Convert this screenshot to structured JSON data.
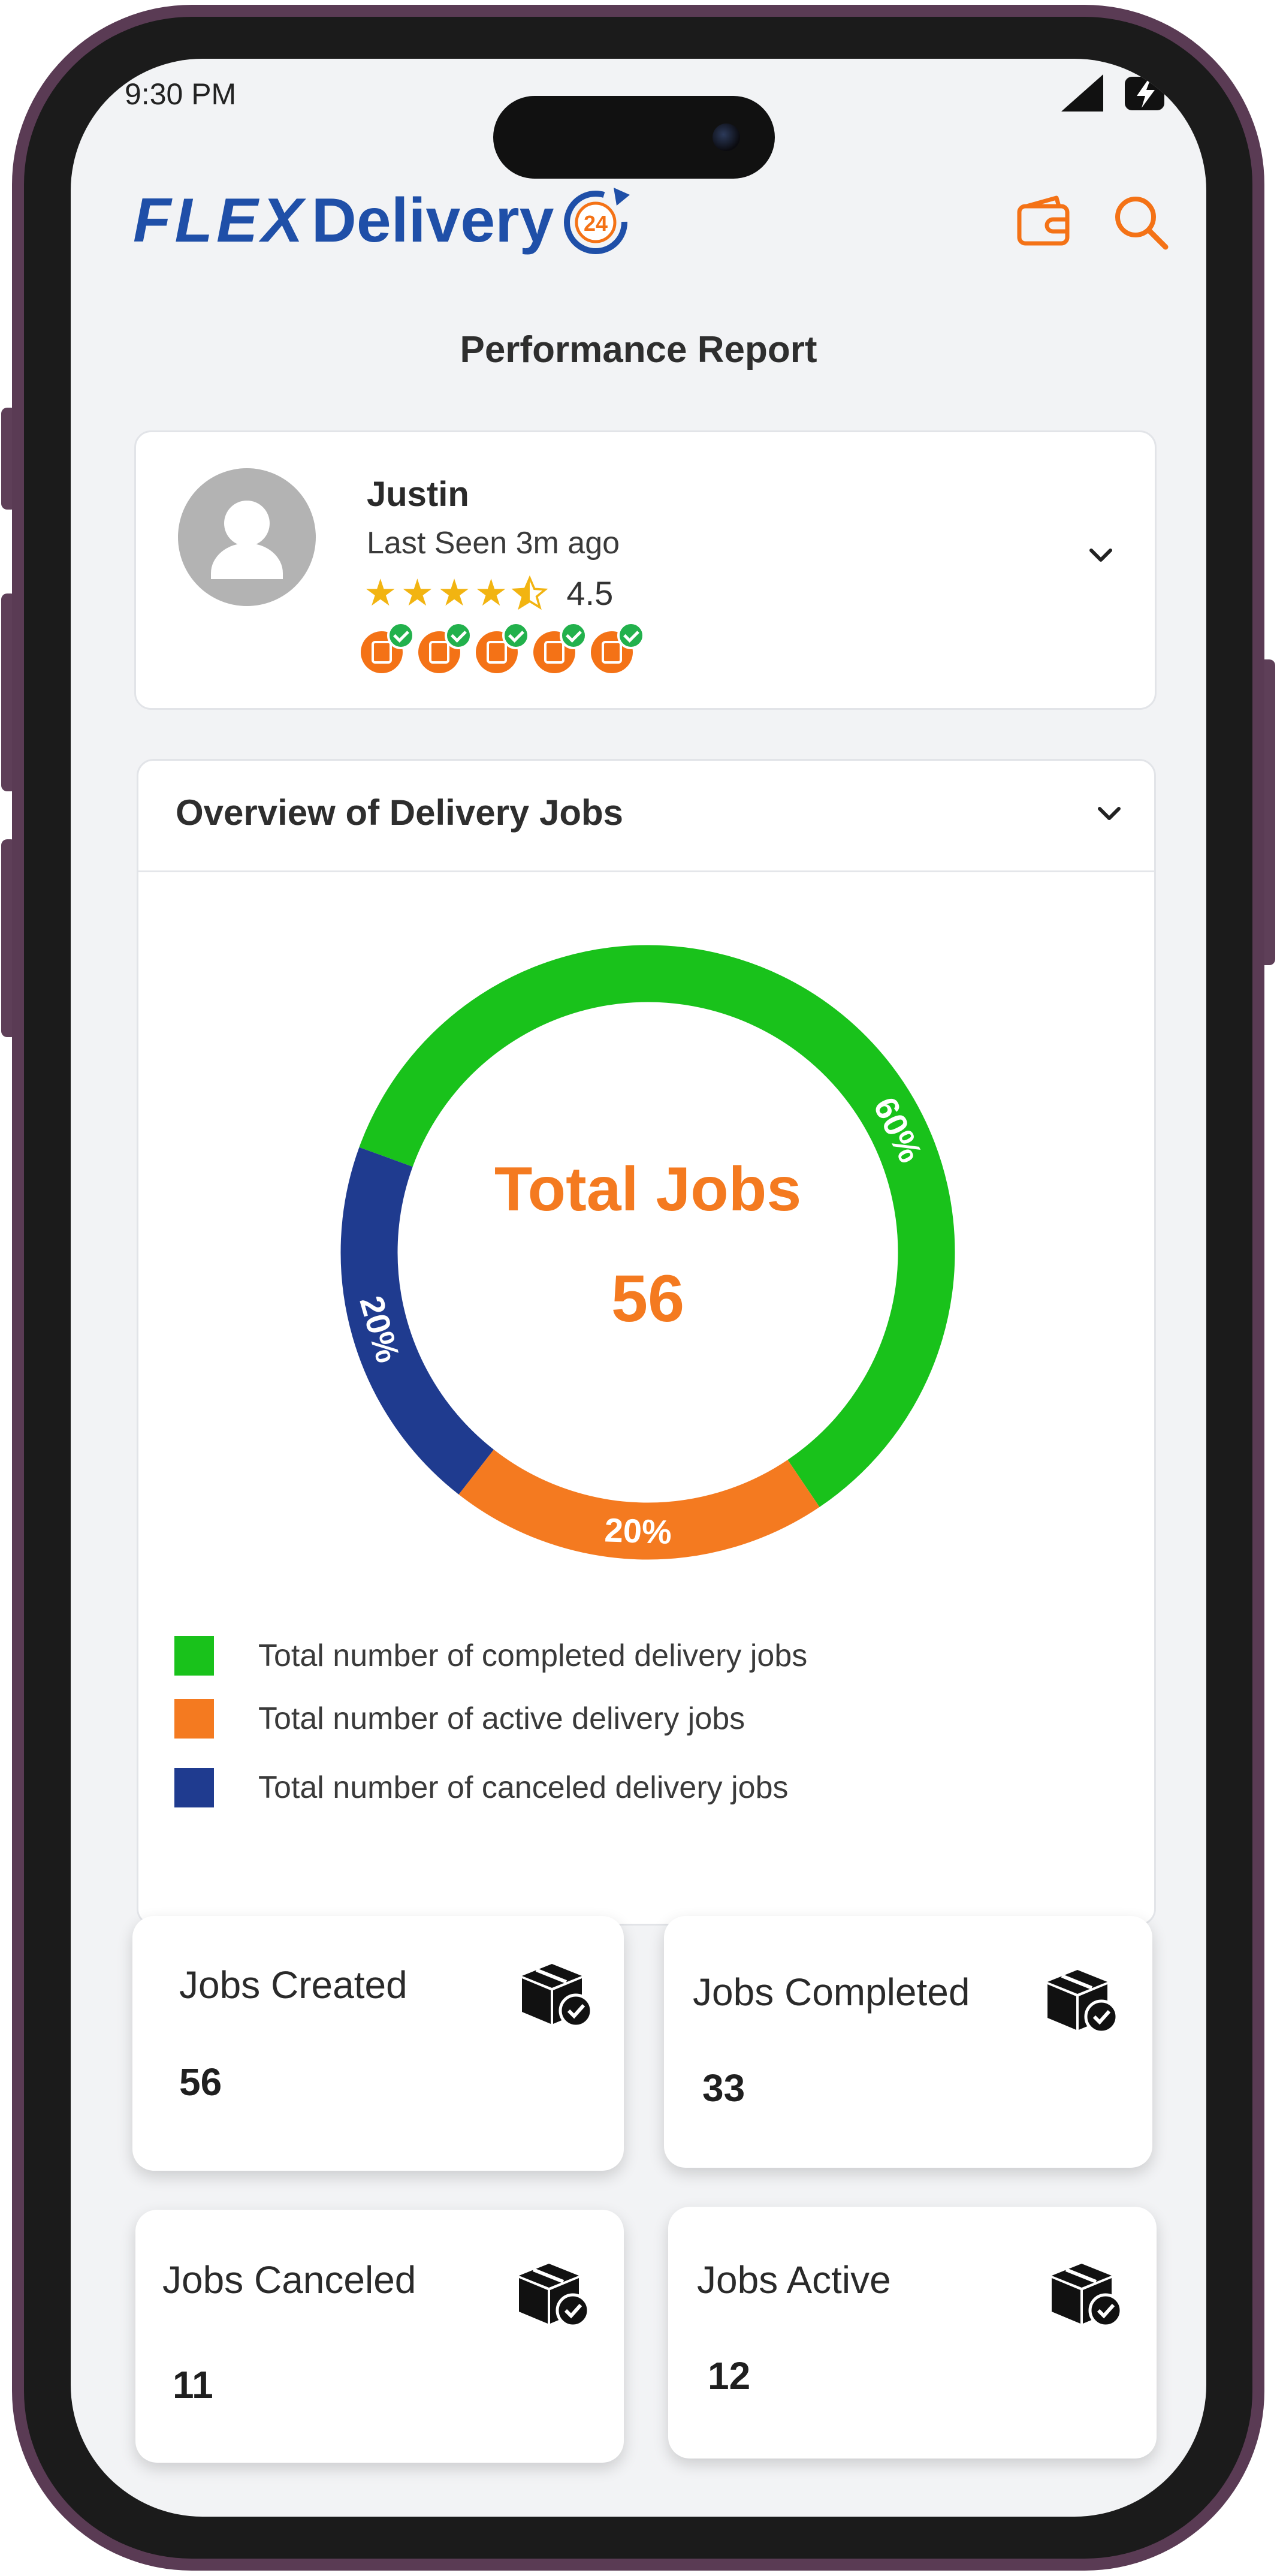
{
  "status_bar": {
    "time": "9:30 PM"
  },
  "header": {
    "logo_part1": "FLEX",
    "logo_part2": "Delivery",
    "logo_badge": "24",
    "icons": [
      "wallet-icon",
      "search-icon"
    ]
  },
  "page_title": "Performance Report",
  "profile": {
    "name": "Justin",
    "last_seen": "Last Seen 3m ago",
    "rating": "4.5",
    "rating_value": 4.5,
    "verification_badges": [
      "phone-icon",
      "email-icon",
      "document-icon",
      "location-icon",
      "building-icon"
    ]
  },
  "overview": {
    "title": "Overview of Delivery Jobs",
    "center_label": "Total Jobs",
    "center_value": "56",
    "legend": [
      {
        "label": "Total number of completed delivery jobs",
        "color": "#19c21b"
      },
      {
        "label": "Total number of active delivery jobs",
        "color": "#f47a20"
      },
      {
        "label": "Total number of canceled delivery jobs",
        "color": "#1f3b8f"
      }
    ]
  },
  "chart_data": {
    "type": "pie",
    "categories": [
      "Completed",
      "Active",
      "Canceled"
    ],
    "values": [
      60,
      20,
      20
    ],
    "labels": [
      "60%",
      "20%",
      "20%"
    ],
    "colors": [
      "#19c21b",
      "#f47a20",
      "#1f3b8f"
    ]
  },
  "stats": [
    {
      "label": "Jobs Created",
      "value": "56"
    },
    {
      "label": "Jobs Completed",
      "value": "33"
    },
    {
      "label": "Jobs Canceled",
      "value": "11"
    },
    {
      "label": "Jobs Active",
      "value": "12"
    }
  ]
}
